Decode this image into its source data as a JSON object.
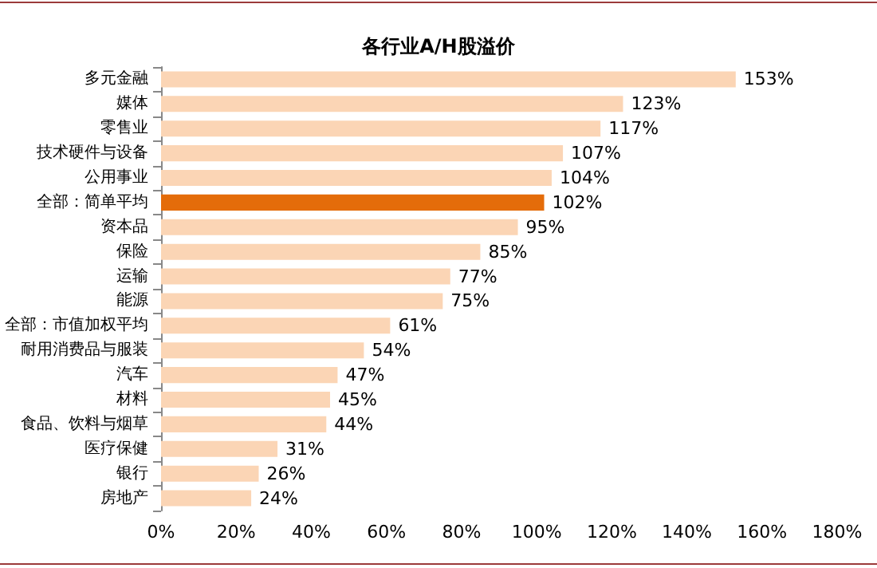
{
  "chart_data": {
    "type": "bar",
    "orientation": "horizontal",
    "title": "各行业A/H股溢价",
    "categories": [
      "多元金融",
      "媒体",
      "零售业",
      "技术硬件与设备",
      "公用事业",
      "全部：简单平均",
      "资本品",
      "保险",
      "运输",
      "能源",
      "全部：市值加权平均",
      "耐用消费品与服装",
      "汽车",
      "材料",
      "食品、饮料与烟草",
      "医疗保健",
      "银行",
      "房地产"
    ],
    "values": [
      153,
      123,
      117,
      107,
      104,
      102,
      95,
      85,
      77,
      75,
      61,
      54,
      47,
      45,
      44,
      31,
      26,
      24
    ],
    "colors": [
      "#fbd5b5",
      "#fbd5b5",
      "#fbd5b5",
      "#fbd5b5",
      "#fbd5b5",
      "#e46c0a",
      "#fbd5b5",
      "#fbd5b5",
      "#fbd5b5",
      "#fbd5b5",
      "#fbd5b5",
      "#fbd5b5",
      "#fbd5b5",
      "#fbd5b5",
      "#fbd5b5",
      "#fbd5b5",
      "#fbd5b5",
      "#fbd5b5"
    ],
    "value_labels": [
      "153%",
      "123%",
      "117%",
      "107%",
      "104%",
      "102%",
      "95%",
      "85%",
      "77%",
      "75%",
      "61%",
      "54%",
      "47%",
      "45%",
      "44%",
      "31%",
      "26%",
      "24%"
    ],
    "xlim": [
      0,
      180
    ],
    "xticks": [
      {
        "value": 0,
        "label": "0%"
      },
      {
        "value": 20,
        "label": "20%"
      },
      {
        "value": 40,
        "label": "40%"
      },
      {
        "value": 60,
        "label": "60%"
      },
      {
        "value": 80,
        "label": "80%"
      },
      {
        "value": 100,
        "label": "100%"
      },
      {
        "value": 120,
        "label": "120%"
      },
      {
        "value": 140,
        "label": "140%"
      },
      {
        "value": 160,
        "label": "160%"
      },
      {
        "value": 180,
        "label": "180%"
      }
    ],
    "grid": false
  }
}
